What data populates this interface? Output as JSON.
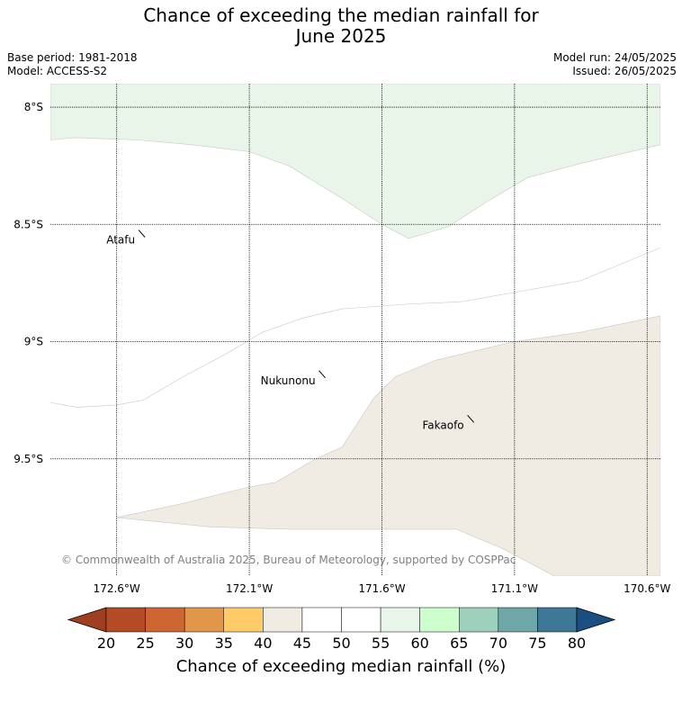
{
  "title": {
    "line1": "Chance of exceeding the median rainfall for",
    "line2": "June 2025"
  },
  "meta": {
    "base_period": "Base period: 1981-2018",
    "model": "Model: ACCESS-S2",
    "model_run": "Model run: 24/05/2025",
    "issued": "Issued: 26/05/2025"
  },
  "map": {
    "lon_range": [
      -172.85,
      -170.55
    ],
    "lat_range": [
      -10.0,
      -7.9
    ],
    "lat_ticks": [
      {
        "value": -8.0,
        "label": "8°S"
      },
      {
        "value": -8.5,
        "label": "8.5°S"
      },
      {
        "value": -9.0,
        "label": "9°S"
      },
      {
        "value": -9.5,
        "label": "9.5°S"
      }
    ],
    "lon_ticks": [
      {
        "value": -172.6,
        "label": "172.6°W"
      },
      {
        "value": -172.1,
        "label": "172.1°W"
      },
      {
        "value": -171.6,
        "label": "171.6°W"
      },
      {
        "value": -171.1,
        "label": "171.1°W"
      },
      {
        "value": -170.6,
        "label": "170.6°W"
      }
    ],
    "places": [
      {
        "name": "Atafu",
        "lon": -172.49,
        "lat": -8.57
      },
      {
        "name": "Nukunonu",
        "lon": -171.81,
        "lat": -9.17
      },
      {
        "name": "Fakaofo",
        "lon": -171.25,
        "lat": -9.36
      }
    ],
    "regions": [
      {
        "band": "55-60",
        "color": "#eaf5ea",
        "points": [
          [
            -172.85,
            -8.14
          ],
          [
            -172.76,
            -8.13
          ],
          [
            -172.52,
            -8.14
          ],
          [
            -172.32,
            -8.16
          ],
          [
            -172.1,
            -8.19
          ],
          [
            -171.95,
            -8.25
          ],
          [
            -171.75,
            -8.39
          ],
          [
            -171.6,
            -8.5
          ],
          [
            -171.5,
            -8.56
          ],
          [
            -171.35,
            -8.51
          ],
          [
            -171.2,
            -8.4
          ],
          [
            -171.05,
            -8.3
          ],
          [
            -170.85,
            -8.24
          ],
          [
            -170.55,
            -8.16
          ],
          [
            -170.55,
            -7.9
          ],
          [
            -172.85,
            -7.9
          ]
        ]
      },
      {
        "band": "40-45",
        "color": "#f0ece4",
        "points": [
          [
            -172.6,
            -9.75
          ],
          [
            -172.35,
            -9.69
          ],
          [
            -172.1,
            -9.62
          ],
          [
            -172.0,
            -9.6
          ],
          [
            -171.85,
            -9.5
          ],
          [
            -171.75,
            -9.45
          ],
          [
            -171.63,
            -9.24
          ],
          [
            -171.55,
            -9.15
          ],
          [
            -171.4,
            -9.08
          ],
          [
            -171.25,
            -9.04
          ],
          [
            -171.1,
            -9.0
          ],
          [
            -170.85,
            -8.96
          ],
          [
            -170.55,
            -8.89
          ],
          [
            -170.55,
            -10.0
          ],
          [
            -170.95,
            -10.0
          ],
          [
            -171.15,
            -9.88
          ],
          [
            -171.32,
            -9.8
          ],
          [
            -171.55,
            -9.8
          ],
          [
            -171.95,
            -9.8
          ],
          [
            -172.25,
            -9.79
          ]
        ]
      }
    ],
    "copyright": "© Commonwealth of Australia 2025, Bureau of Meteorology, supported by COSPPac"
  },
  "colorbar": {
    "ticks": [
      "20",
      "25",
      "30",
      "35",
      "40",
      "45",
      "50",
      "55",
      "60",
      "65",
      "70",
      "75",
      "80"
    ],
    "colors": [
      "#b34b24",
      "#cd6633",
      "#e2964a",
      "#fecb67",
      "#f0ece4",
      "#ffffff",
      "#ffffff",
      "#eaf5ea",
      "#ccffcc",
      "#9dd1bb",
      "#6da7a7",
      "#3e7896"
    ],
    "under_color": "#9f3f21",
    "over_color": "#1a4f82",
    "label": "Chance of exceeding median rainfall (%)"
  }
}
